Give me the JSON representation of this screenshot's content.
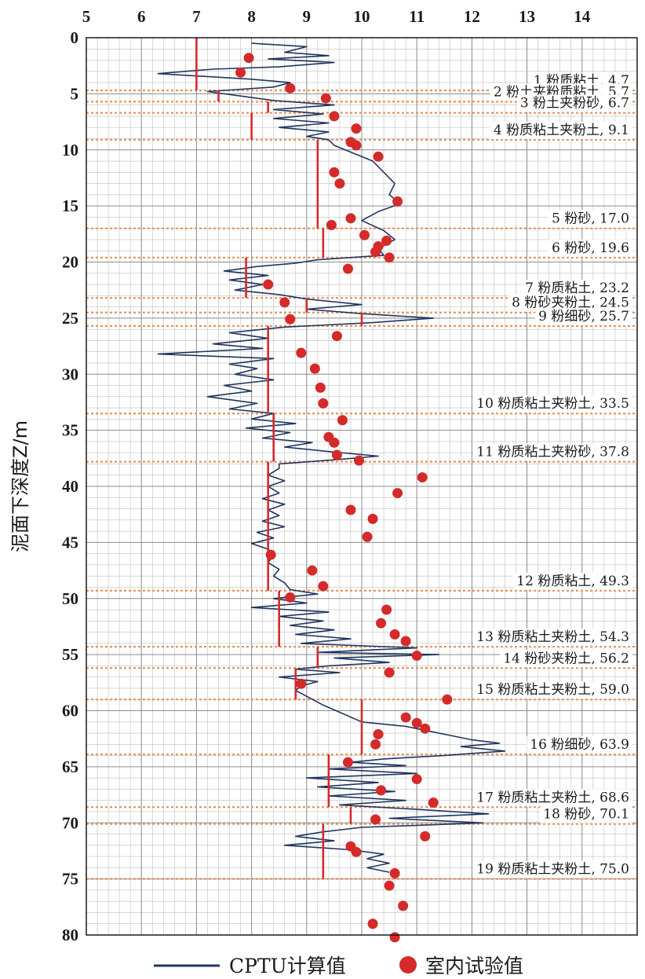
{
  "chart_data": {
    "type": "scatter",
    "x_ticks": [
      "5",
      "6",
      "7",
      "8",
      "9",
      "10",
      "11",
      "12",
      "13",
      "14"
    ],
    "xlim": [
      5,
      15
    ],
    "y_ticks": [
      "0",
      "5",
      "10",
      "15",
      "20",
      "25",
      "30",
      "35",
      "40",
      "45",
      "50",
      "55",
      "60",
      "65",
      "70",
      "75",
      "80"
    ],
    "ylim": [
      0,
      80
    ],
    "ylabel": "泥面下深度Z/m",
    "grid": true,
    "legend": {
      "position": "bottom",
      "cptu": "CPTU计算值",
      "lab": "室内试验值"
    },
    "colors": {
      "cptu": "#1f3560",
      "lab": "#d42a2a",
      "layer_line": "#e8925a",
      "grid": "#bfbfbf"
    },
    "layers": [
      {
        "label": "1 粉质粘土, 4.7",
        "bottom": 4.7,
        "value": 7.0,
        "top": 0.0
      },
      {
        "label": "2 粉土夹粉质粘土, 5.7",
        "bottom": 5.7,
        "value": 7.4,
        "top": 4.7
      },
      {
        "label": "3 粉土夹粉砂, 6.7",
        "bottom": 6.7,
        "value": 8.3,
        "top": 5.7
      },
      {
        "label": "4 粉质粘土夹粉土, 9.1",
        "bottom": 9.1,
        "value": 8.0,
        "top": 6.7
      },
      {
        "label": "5 粉砂, 17.0",
        "bottom": 17.0,
        "value": 9.2,
        "top": 9.1
      },
      {
        "label": "6 粉砂, 19.6",
        "bottom": 19.6,
        "value": 9.3,
        "top": 17.0
      },
      {
        "label": "7 粉质粘土, 23.2",
        "bottom": 23.2,
        "value": 7.9,
        "top": 19.6
      },
      {
        "label": "8 粉砂夹粉土, 24.5",
        "bottom": 24.5,
        "value": 9.0,
        "top": 23.2
      },
      {
        "label": "9 粉细砂, 25.7",
        "bottom": 25.7,
        "value": 10.0,
        "top": 24.5
      },
      {
        "label": "10 粉质粘土夹粉土, 33.5",
        "bottom": 33.5,
        "value": 8.3,
        "top": 25.7
      },
      {
        "label": "11 粉质粘土夹粉砂, 37.8",
        "bottom": 37.8,
        "value": 8.4,
        "top": 33.5
      },
      {
        "label": "12 粉质粘土, 49.3",
        "bottom": 49.3,
        "value": 8.3,
        "top": 37.8
      },
      {
        "label": "13 粉质粘土夹粉土, 54.3",
        "bottom": 54.3,
        "value": 8.5,
        "top": 49.3
      },
      {
        "label": "14 粉砂夹粉土, 56.2",
        "bottom": 56.2,
        "value": 9.2,
        "top": 54.3
      },
      {
        "label": "15 粉质粘土夹粉土, 59.0",
        "bottom": 59.0,
        "value": 8.8,
        "top": 56.2
      },
      {
        "label": "16 粉细砂, 63.9",
        "bottom": 63.9,
        "value": 10.0,
        "top": 59.0
      },
      {
        "label": "17 粉质粘土夹粉土, 68.6",
        "bottom": 68.6,
        "value": 9.4,
        "top": 63.9
      },
      {
        "label": "18 粉砂, 70.1",
        "bottom": 70.1,
        "value": 9.8,
        "top": 68.6
      },
      {
        "label": "19 粉质粘土夹粉土, 75.0",
        "bottom": 75.0,
        "value": 9.3,
        "top": 70.1
      }
    ],
    "series": [
      {
        "name": "CPTU计算值",
        "points": [
          [
            8.0,
            0.5
          ],
          [
            9.0,
            0.8
          ],
          [
            8.6,
            1.3
          ],
          [
            9.4,
            1.6
          ],
          [
            8.3,
            1.9
          ],
          [
            9.5,
            2.2
          ],
          [
            8.5,
            2.6
          ],
          [
            7.3,
            2.8
          ],
          [
            6.3,
            3.2
          ],
          [
            8.0,
            3.7
          ],
          [
            8.7,
            4.0
          ],
          [
            8.4,
            4.4
          ],
          [
            7.2,
            4.8
          ],
          [
            7.8,
            5.2
          ],
          [
            8.4,
            5.6
          ],
          [
            9.5,
            6.0
          ],
          [
            8.4,
            6.4
          ],
          [
            9.3,
            6.8
          ],
          [
            8.4,
            7.2
          ],
          [
            9.4,
            7.6
          ],
          [
            8.5,
            8.0
          ],
          [
            9.4,
            8.4
          ],
          [
            9.0,
            8.8
          ],
          [
            9.4,
            9.1
          ],
          [
            9.5,
            9.6
          ],
          [
            9.8,
            10.2
          ],
          [
            10.2,
            11.0
          ],
          [
            10.4,
            12.0
          ],
          [
            10.6,
            13.0
          ],
          [
            10.5,
            14.0
          ],
          [
            10.7,
            14.8
          ],
          [
            10.3,
            15.5
          ],
          [
            10.0,
            16.3
          ],
          [
            10.4,
            17.2
          ],
          [
            10.6,
            18.0
          ],
          [
            10.3,
            18.8
          ],
          [
            10.4,
            19.4
          ],
          [
            9.2,
            19.8
          ],
          [
            8.8,
            20.1
          ],
          [
            8.1,
            20.4
          ],
          [
            7.5,
            20.8
          ],
          [
            8.3,
            21.2
          ],
          [
            7.6,
            21.6
          ],
          [
            8.2,
            22.0
          ],
          [
            7.7,
            22.5
          ],
          [
            8.5,
            22.9
          ],
          [
            9.0,
            23.3
          ],
          [
            10.0,
            23.8
          ],
          [
            9.0,
            24.2
          ],
          [
            10.0,
            24.6
          ],
          [
            11.3,
            25.0
          ],
          [
            10.2,
            25.4
          ],
          [
            8.6,
            25.8
          ],
          [
            7.6,
            26.3
          ],
          [
            8.3,
            26.8
          ],
          [
            7.3,
            27.3
          ],
          [
            8.2,
            27.7
          ],
          [
            6.3,
            28.2
          ],
          [
            8.4,
            28.6
          ],
          [
            7.6,
            29.1
          ],
          [
            8.1,
            29.5
          ],
          [
            7.7,
            30.0
          ],
          [
            8.4,
            30.5
          ],
          [
            7.5,
            31.0
          ],
          [
            8.0,
            31.5
          ],
          [
            7.2,
            32.0
          ],
          [
            8.1,
            32.6
          ],
          [
            7.6,
            33.1
          ],
          [
            8.4,
            33.5
          ],
          [
            8.0,
            34.0
          ],
          [
            8.8,
            34.4
          ],
          [
            7.9,
            34.8
          ],
          [
            8.7,
            35.2
          ],
          [
            8.2,
            35.7
          ],
          [
            9.1,
            36.1
          ],
          [
            8.6,
            36.5
          ],
          [
            9.4,
            36.9
          ],
          [
            10.3,
            37.3
          ],
          [
            9.6,
            37.6
          ],
          [
            8.5,
            38.0
          ],
          [
            8.5,
            38.4
          ],
          [
            8.3,
            39.0
          ],
          [
            8.6,
            39.5
          ],
          [
            8.3,
            40.0
          ],
          [
            8.5,
            40.6
          ],
          [
            8.2,
            41.1
          ],
          [
            8.6,
            41.6
          ],
          [
            8.3,
            42.1
          ],
          [
            8.5,
            42.6
          ],
          [
            8.2,
            43.1
          ],
          [
            8.6,
            43.6
          ],
          [
            8.1,
            44.1
          ],
          [
            8.4,
            44.6
          ],
          [
            8.0,
            45.1
          ],
          [
            8.3,
            45.6
          ],
          [
            8.4,
            46.1
          ],
          [
            8.3,
            46.8
          ],
          [
            8.5,
            47.4
          ],
          [
            8.4,
            48.0
          ],
          [
            8.6,
            48.6
          ],
          [
            8.7,
            49.2
          ],
          [
            9.2,
            49.6
          ],
          [
            8.4,
            50.0
          ],
          [
            9.0,
            50.4
          ],
          [
            8.0,
            50.8
          ],
          [
            9.4,
            51.2
          ],
          [
            8.5,
            51.6
          ],
          [
            9.3,
            52.0
          ],
          [
            8.7,
            52.4
          ],
          [
            9.5,
            52.8
          ],
          [
            8.8,
            53.2
          ],
          [
            9.8,
            53.6
          ],
          [
            8.9,
            54.0
          ],
          [
            11.0,
            54.4
          ],
          [
            9.2,
            54.8
          ],
          [
            11.4,
            55.0
          ],
          [
            9.5,
            55.3
          ],
          [
            10.5,
            55.7
          ],
          [
            9.4,
            56.0
          ],
          [
            8.8,
            56.3
          ],
          [
            9.6,
            56.6
          ],
          [
            8.5,
            57.0
          ],
          [
            9.2,
            57.4
          ],
          [
            8.9,
            57.8
          ],
          [
            8.8,
            58.2
          ],
          [
            9.3,
            59.5
          ],
          [
            10.0,
            61.0
          ],
          [
            10.8,
            61.4
          ],
          [
            11.2,
            61.8
          ],
          [
            11.6,
            62.2
          ],
          [
            12.0,
            62.6
          ],
          [
            12.5,
            62.9
          ],
          [
            11.8,
            63.2
          ],
          [
            12.6,
            63.6
          ],
          [
            11.5,
            64.0
          ],
          [
            10.4,
            64.3
          ],
          [
            9.8,
            64.6
          ],
          [
            10.8,
            64.9
          ],
          [
            9.4,
            65.2
          ],
          [
            11.0,
            65.6
          ],
          [
            9.0,
            66.0
          ],
          [
            10.3,
            66.4
          ],
          [
            9.2,
            66.8
          ],
          [
            10.6,
            67.2
          ],
          [
            9.4,
            67.6
          ],
          [
            10.8,
            68.0
          ],
          [
            9.6,
            68.4
          ],
          [
            11.0,
            68.8
          ],
          [
            12.3,
            69.2
          ],
          [
            10.5,
            69.6
          ],
          [
            12.2,
            70.0
          ],
          [
            10.0,
            70.4
          ],
          [
            9.3,
            70.8
          ],
          [
            8.8,
            71.2
          ],
          [
            9.5,
            71.6
          ],
          [
            8.6,
            72.0
          ],
          [
            9.8,
            72.4
          ],
          [
            10.4,
            72.8
          ],
          [
            10.1,
            73.2
          ],
          [
            10.5,
            73.6
          ],
          [
            10.1,
            74.0
          ],
          [
            10.5,
            74.4
          ]
        ]
      },
      {
        "name": "室内试验值",
        "points": [
          [
            7.95,
            1.8
          ],
          [
            7.8,
            3.1
          ],
          [
            8.7,
            4.5
          ],
          [
            9.35,
            5.4
          ],
          [
            9.5,
            7.0
          ],
          [
            9.9,
            8.1
          ],
          [
            9.8,
            9.3
          ],
          [
            9.9,
            9.6
          ],
          [
            10.3,
            10.6
          ],
          [
            9.5,
            12.0
          ],
          [
            9.6,
            13.0
          ],
          [
            10.65,
            14.6
          ],
          [
            9.8,
            16.1
          ],
          [
            9.45,
            16.7
          ],
          [
            10.05,
            17.6
          ],
          [
            10.45,
            18.1
          ],
          [
            10.3,
            18.6
          ],
          [
            10.25,
            19.1
          ],
          [
            10.5,
            19.6
          ],
          [
            9.75,
            20.6
          ],
          [
            8.3,
            22.0
          ],
          [
            8.6,
            23.6
          ],
          [
            8.7,
            25.1
          ],
          [
            9.55,
            26.6
          ],
          [
            8.9,
            28.1
          ],
          [
            9.15,
            29.5
          ],
          [
            9.25,
            31.2
          ],
          [
            9.3,
            32.6
          ],
          [
            9.65,
            34.1
          ],
          [
            9.4,
            35.6
          ],
          [
            9.5,
            36.1
          ],
          [
            9.55,
            37.2
          ],
          [
            9.95,
            37.7
          ],
          [
            11.1,
            39.2
          ],
          [
            10.65,
            40.6
          ],
          [
            9.8,
            42.1
          ],
          [
            10.2,
            42.9
          ],
          [
            10.1,
            44.5
          ],
          [
            8.35,
            46.1
          ],
          [
            9.1,
            47.5
          ],
          [
            9.3,
            48.9
          ],
          [
            8.7,
            49.9
          ],
          [
            10.45,
            51.0
          ],
          [
            10.35,
            52.2
          ],
          [
            10.6,
            53.2
          ],
          [
            10.8,
            53.8
          ],
          [
            11.0,
            55.1
          ],
          [
            10.5,
            56.6
          ],
          [
            8.9,
            57.6
          ],
          [
            11.55,
            59.0
          ],
          [
            10.8,
            60.6
          ],
          [
            11.0,
            61.1
          ],
          [
            11.15,
            61.6
          ],
          [
            10.3,
            62.1
          ],
          [
            10.25,
            63.0
          ],
          [
            9.75,
            64.6
          ],
          [
            11.0,
            66.1
          ],
          [
            10.35,
            67.1
          ],
          [
            11.3,
            68.2
          ],
          [
            10.25,
            69.7
          ],
          [
            11.15,
            71.2
          ],
          [
            9.8,
            72.1
          ],
          [
            9.9,
            72.6
          ],
          [
            10.6,
            74.5
          ],
          [
            10.5,
            75.6
          ],
          [
            10.75,
            77.4
          ],
          [
            10.2,
            79.0
          ],
          [
            10.6,
            80.2
          ]
        ]
      }
    ]
  }
}
